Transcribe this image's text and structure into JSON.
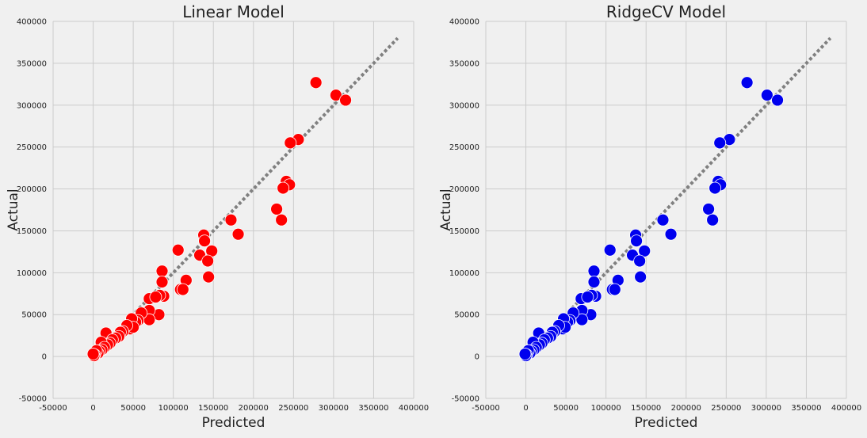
{
  "chart_data": [
    {
      "type": "scatter",
      "title": "Linear Model",
      "xlabel": "Predicted",
      "ylabel": "Actual",
      "xlim": [
        -50000,
        400000
      ],
      "ylim": [
        -50000,
        400000
      ],
      "x_ticks": [
        "-50000",
        "0",
        "50000",
        "100000",
        "150000",
        "200000",
        "250000",
        "300000",
        "350000",
        "400000"
      ],
      "y_ticks": [
        "-50000",
        "0",
        "50000",
        "100000",
        "150000",
        "200000",
        "250000",
        "300000",
        "350000",
        "400000"
      ],
      "grid": true,
      "marker_color": "#ff0000",
      "reference_line": {
        "x": [
          0,
          380000
        ],
        "y": [
          0,
          380000
        ],
        "style": "dotted",
        "color": "#808080"
      },
      "points": [
        [
          278000,
          327000
        ],
        [
          303000,
          312000
        ],
        [
          315000,
          306000
        ],
        [
          256000,
          259000
        ],
        [
          246000,
          255000
        ],
        [
          241000,
          209000
        ],
        [
          245000,
          205000
        ],
        [
          237000,
          201000
        ],
        [
          229000,
          176000
        ],
        [
          235000,
          163000
        ],
        [
          172000,
          163000
        ],
        [
          181000,
          146000
        ],
        [
          138000,
          145000
        ],
        [
          139000,
          138000
        ],
        [
          106000,
          127000
        ],
        [
          148000,
          126000
        ],
        [
          133000,
          121000
        ],
        [
          143000,
          114000
        ],
        [
          144000,
          95000
        ],
        [
          116000,
          91000
        ],
        [
          86000,
          102000
        ],
        [
          109000,
          80000
        ],
        [
          112000,
          80000
        ],
        [
          86000,
          89000
        ],
        [
          88000,
          72000
        ],
        [
          83000,
          73000
        ],
        [
          70000,
          69000
        ],
        [
          78000,
          71000
        ],
        [
          82000,
          50000
        ],
        [
          70000,
          55000
        ],
        [
          70000,
          44000
        ],
        [
          60000,
          52000
        ],
        [
          56000,
          43000
        ],
        [
          53000,
          41000
        ],
        [
          48000,
          45000
        ],
        [
          46000,
          33000
        ],
        [
          50000,
          35000
        ],
        [
          42000,
          37000
        ],
        [
          37000,
          30000
        ],
        [
          34000,
          29000
        ],
        [
          32000,
          24000
        ],
        [
          28000,
          22000
        ],
        [
          16000,
          28000
        ],
        [
          24000,
          20000
        ],
        [
          21000,
          16000
        ],
        [
          18000,
          14000
        ],
        [
          10000,
          17000
        ],
        [
          14000,
          11000
        ],
        [
          11000,
          8000
        ],
        [
          8000,
          6000
        ],
        [
          6000,
          4000
        ],
        [
          4000,
          7000
        ],
        [
          2000,
          2000
        ],
        [
          1000,
          1000
        ],
        [
          0,
          3000
        ]
      ]
    },
    {
      "type": "scatter",
      "title": "RidgeCV Model",
      "xlabel": "Predicted",
      "ylabel": "Actual",
      "xlim": [
        -50000,
        400000
      ],
      "ylim": [
        -50000,
        400000
      ],
      "x_ticks": [
        "-50000",
        "0",
        "50000",
        "100000",
        "150000",
        "200000",
        "250000",
        "300000",
        "350000",
        "400000"
      ],
      "y_ticks": [
        "-50000",
        "0",
        "50000",
        "100000",
        "150000",
        "200000",
        "250000",
        "300000",
        "350000",
        "400000"
      ],
      "grid": true,
      "marker_color": "#0000ee",
      "reference_line": {
        "x": [
          0,
          380000
        ],
        "y": [
          0,
          380000
        ],
        "style": "dotted",
        "color": "#808080"
      },
      "points": [
        [
          276000,
          327000
        ],
        [
          301000,
          312000
        ],
        [
          314000,
          306000
        ],
        [
          254000,
          259000
        ],
        [
          242000,
          255000
        ],
        [
          240000,
          209000
        ],
        [
          243000,
          205000
        ],
        [
          236000,
          201000
        ],
        [
          228000,
          176000
        ],
        [
          233000,
          163000
        ],
        [
          171000,
          163000
        ],
        [
          181000,
          146000
        ],
        [
          137000,
          145000
        ],
        [
          138000,
          138000
        ],
        [
          105000,
          127000
        ],
        [
          148000,
          126000
        ],
        [
          133000,
          121000
        ],
        [
          142000,
          114000
        ],
        [
          143000,
          95000
        ],
        [
          115000,
          91000
        ],
        [
          85000,
          102000
        ],
        [
          108000,
          80000
        ],
        [
          111000,
          80000
        ],
        [
          85000,
          89000
        ],
        [
          87000,
          72000
        ],
        [
          82000,
          73000
        ],
        [
          69000,
          69000
        ],
        [
          77000,
          71000
        ],
        [
          81000,
          50000
        ],
        [
          70000,
          55000
        ],
        [
          70000,
          44000
        ],
        [
          59000,
          52000
        ],
        [
          55000,
          43000
        ],
        [
          52000,
          41000
        ],
        [
          47000,
          45000
        ],
        [
          46000,
          33000
        ],
        [
          49000,
          35000
        ],
        [
          41000,
          37000
        ],
        [
          36000,
          30000
        ],
        [
          33000,
          29000
        ],
        [
          31000,
          24000
        ],
        [
          27000,
          22000
        ],
        [
          16000,
          28000
        ],
        [
          23000,
          20000
        ],
        [
          20000,
          16000
        ],
        [
          17000,
          14000
        ],
        [
          9000,
          17000
        ],
        [
          13000,
          11000
        ],
        [
          10000,
          8000
        ],
        [
          7000,
          6000
        ],
        [
          5000,
          4000
        ],
        [
          3000,
          7000
        ],
        [
          1000,
          2000
        ],
        [
          0,
          1000
        ],
        [
          -1000,
          3000
        ]
      ]
    }
  ]
}
